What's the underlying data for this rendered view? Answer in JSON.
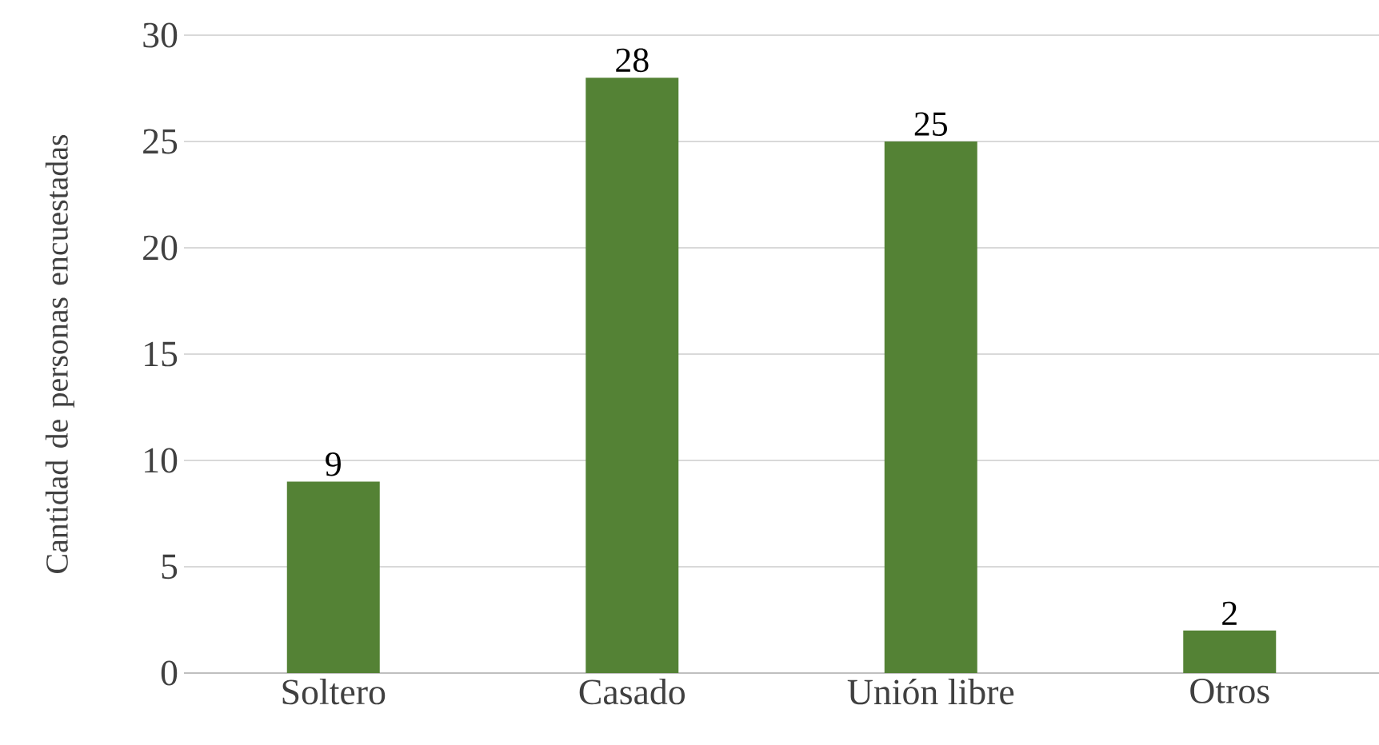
{
  "chart_data": {
    "type": "bar",
    "ylabel": "Cantidad de personas encuestadas",
    "categories": [
      "Soltero",
      "Casado",
      "Unión libre",
      "Otros"
    ],
    "values": [
      9,
      28,
      25,
      2
    ],
    "color": "#548235",
    "ylim": [
      0,
      30
    ],
    "yticks": [
      0,
      5,
      10,
      15,
      20,
      25,
      30
    ],
    "grid": "y",
    "data_labels": true
  }
}
